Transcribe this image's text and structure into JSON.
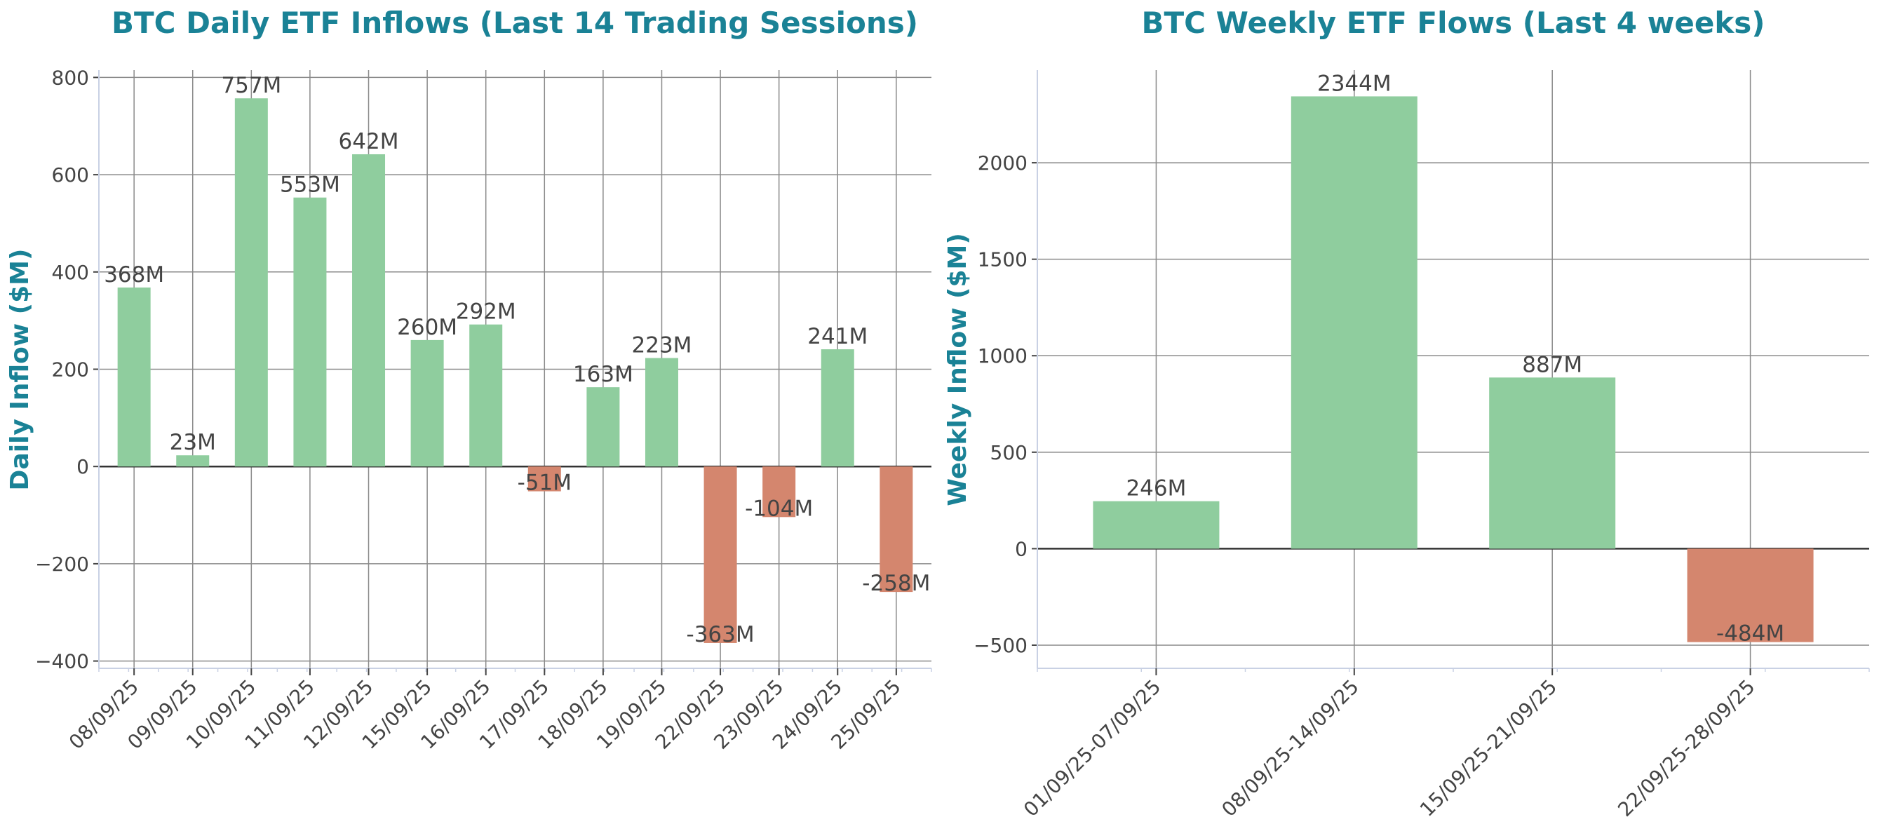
{
  "colors": {
    "positive": "#8fcd9e",
    "negative": "#d4866e",
    "title": "#1a8296",
    "label_text": "#444444"
  },
  "chart_data": [
    {
      "type": "bar",
      "title": "BTC Daily ETF Inflows (Last 14 Trading Sessions)",
      "xlabel": "",
      "ylabel": "Daily Inflow ($M)",
      "categories": [
        "08/09/25",
        "09/09/25",
        "10/09/25",
        "11/09/25",
        "12/09/25",
        "15/09/25",
        "16/09/25",
        "17/09/25",
        "18/09/25",
        "19/09/25",
        "22/09/25",
        "23/09/25",
        "24/09/25",
        "25/09/25"
      ],
      "values": [
        368,
        23,
        757,
        553,
        642,
        260,
        292,
        -51,
        163,
        223,
        -363,
        -104,
        241,
        -258
      ],
      "bar_labels": [
        "368M",
        "23M",
        "757M",
        "553M",
        "642M",
        "260M",
        "292M",
        "-51M",
        "163M",
        "223M",
        "-363M",
        "-104M",
        "241M",
        "-258M"
      ],
      "ylim": [
        -415,
        815
      ],
      "yticks": [
        -400,
        -200,
        0,
        200,
        400,
        600,
        800
      ],
      "ytick_labels": [
        "−400",
        "−200",
        "0",
        "200",
        "400",
        "600",
        "800"
      ],
      "grid": true,
      "legend": "none"
    },
    {
      "type": "bar",
      "title": "BTC Weekly ETF Flows (Last 4 weeks)",
      "xlabel": "",
      "ylabel": "Weekly Inflow ($M)",
      "categories": [
        "01/09/25-07/09/25",
        "08/09/25-14/09/25",
        "15/09/25-21/09/25",
        "22/09/25-28/09/25"
      ],
      "values": [
        246,
        2344,
        887,
        -484
      ],
      "bar_labels": [
        "246M",
        "2344M",
        "887M",
        "-484M"
      ],
      "ylim": [
        -620,
        2480
      ],
      "yticks": [
        -500,
        0,
        500,
        1000,
        1500,
        2000
      ],
      "ytick_labels": [
        "−500",
        "0",
        "500",
        "1000",
        "1500",
        "2000"
      ],
      "grid": true,
      "legend": "none"
    }
  ]
}
